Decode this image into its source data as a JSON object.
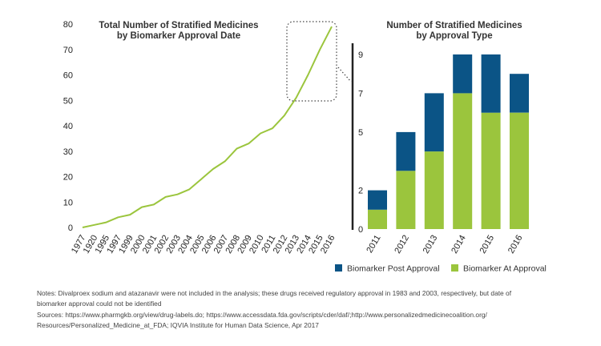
{
  "chart_data": [
    {
      "type": "line",
      "title_lines": [
        "Total Number of Stratified Medicines",
        "by Biomarker Approval Date"
      ],
      "x": [
        "1977",
        "1920",
        "1995",
        "1997",
        "1999",
        "2000",
        "2001",
        "2002",
        "2003",
        "2004",
        "2005",
        "2006",
        "2007",
        "2008",
        "2009",
        "2010",
        "2011",
        "2012",
        "2013",
        "2014",
        "2015",
        "2016"
      ],
      "values": [
        0,
        1,
        2,
        4,
        5,
        8,
        9,
        12,
        13,
        15,
        19,
        23,
        26,
        31,
        33,
        37,
        39,
        44,
        51,
        60,
        70,
        79
      ],
      "ylim": [
        0,
        80
      ],
      "yticks": [
        0,
        10,
        20,
        30,
        40,
        50,
        60,
        70,
        80
      ],
      "color": "#9bc53d"
    },
    {
      "type": "bar",
      "stacked": true,
      "title_lines": [
        "Number of Stratified Medicines",
        "by Approval Type"
      ],
      "categories": [
        "2011",
        "2012",
        "2013",
        "2014",
        "2015",
        "2016"
      ],
      "series": [
        {
          "name": "Biomarker At Approval",
          "values": [
            1,
            3,
            4,
            7,
            6,
            6
          ],
          "color": "#9bc53d"
        },
        {
          "name": "Biomarker Post Approval",
          "values": [
            1,
            2,
            3,
            2,
            3,
            2
          ],
          "color": "#0b5486"
        }
      ],
      "ylim": [
        0,
        9
      ],
      "yticks": [
        0,
        2,
        5,
        7,
        9
      ]
    }
  ],
  "notes": {
    "line1": "Notes: Divalproex sodium and atazanavir were not included in the analysis; these drugs received regulatory approval in 1983 and 2003, respectively, but date of",
    "line2": "biomarker approval could not be identified",
    "line3": "Sources: https://www.pharmgkb.org/view/drug-labels.do; https://www.accessdata.fda.gov/scripts/cder/daf/;http://www.personalizedmedicinecoalition.org/",
    "line4": "Resources/Personalized_Medicine_at_FDA; IQVIA Institute for Human Data Science, Apr 2017"
  }
}
